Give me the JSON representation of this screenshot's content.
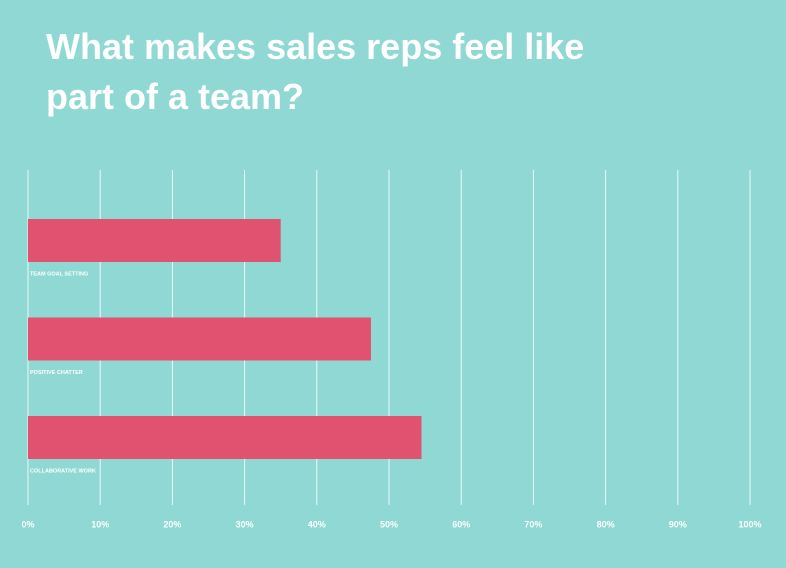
{
  "chart_data": {
    "type": "hbar",
    "title": "What makes sales reps feel like part of a team?",
    "categories": [
      "TEAM GOAL SETTING",
      "POSITIVE CHATTER",
      "COLLABORATIVE WORK"
    ],
    "values": [
      35,
      47.5,
      54.5
    ],
    "color": "#e0526f",
    "xlim": [
      0,
      100
    ],
    "xticks": [
      {
        "value": 0,
        "label": "0%"
      },
      {
        "value": 10,
        "label": "10%"
      },
      {
        "value": 20,
        "label": "20%"
      },
      {
        "value": 30,
        "label": "30%"
      },
      {
        "value": 40,
        "label": "40%"
      },
      {
        "value": 50,
        "label": "50%"
      },
      {
        "value": 60,
        "label": "60%"
      },
      {
        "value": 70,
        "label": "70%"
      },
      {
        "value": 80,
        "label": "80%"
      },
      {
        "value": 90,
        "label": "90%"
      },
      {
        "value": 100,
        "label": "100%"
      }
    ],
    "grid": true
  }
}
